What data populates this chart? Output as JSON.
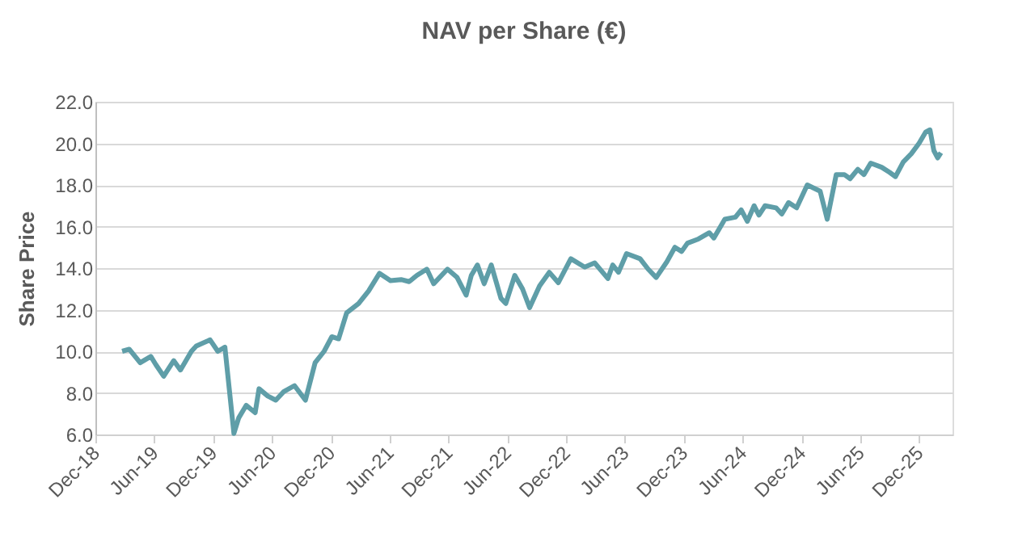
{
  "chart_data": {
    "type": "line",
    "title": "NAV per Share (€)",
    "ylabel": "Share Price",
    "x": [
      "2019-02-22",
      "2019-03-16",
      "2019-04-19",
      "2019-05-22",
      "2019-06-07",
      "2019-07-01",
      "2019-08-01",
      "2019-08-22",
      "2019-09-25",
      "2019-10-10",
      "2019-11-22",
      "2019-12-16",
      "2020-01-07",
      "2020-02-04",
      "2020-02-19",
      "2020-03-13",
      "2020-04-10",
      "2020-04-22",
      "2020-05-19",
      "2020-06-13",
      "2020-07-07",
      "2020-08-10",
      "2020-09-13",
      "2020-10-13",
      "2020-11-10",
      "2020-12-04",
      "2020-12-25",
      "2021-01-19",
      "2021-02-25",
      "2021-03-28",
      "2021-05-01",
      "2021-06-04",
      "2021-07-07",
      "2021-08-01",
      "2021-08-25",
      "2021-09-25",
      "2021-10-16",
      "2021-11-28",
      "2021-12-28",
      "2022-01-25",
      "2022-02-10",
      "2022-03-01",
      "2022-03-22",
      "2022-04-13",
      "2022-05-13",
      "2022-05-28",
      "2022-06-25",
      "2022-07-19",
      "2022-08-10",
      "2022-09-10",
      "2022-10-10",
      "2022-11-07",
      "2022-12-16",
      "2023-01-28",
      "2023-02-28",
      "2023-04-10",
      "2023-04-25",
      "2023-05-13",
      "2023-06-07",
      "2023-07-19",
      "2023-08-13",
      "2023-09-07",
      "2023-10-10",
      "2023-11-04",
      "2023-11-25",
      "2023-12-13",
      "2024-01-16",
      "2024-02-19",
      "2024-03-04",
      "2024-04-07",
      "2024-05-10",
      "2024-05-28",
      "2024-06-16",
      "2024-07-07",
      "2024-07-22",
      "2024-08-10",
      "2024-09-13",
      "2024-10-01",
      "2024-10-22",
      "2024-11-16",
      "2024-12-19",
      "2025-01-28",
      "2025-02-19",
      "2025-03-19",
      "2025-04-13",
      "2025-05-01",
      "2025-05-25",
      "2025-06-13",
      "2025-07-04",
      "2025-08-07",
      "2025-09-01",
      "2025-09-19",
      "2025-10-13",
      "2025-11-07",
      "2025-12-01",
      "2025-12-22",
      "2026-01-04",
      "2026-01-16",
      "2026-01-28",
      "2026-02-07"
    ],
    "series": [
      {
        "color": "#5f9ea8",
        "values": [
          10.0,
          10.1,
          9.45,
          9.75,
          9.35,
          8.8,
          9.55,
          9.1,
          10.0,
          10.25,
          10.55,
          10.0,
          10.2,
          6.05,
          6.8,
          7.4,
          7.05,
          8.2,
          7.85,
          7.65,
          8.05,
          8.35,
          7.65,
          9.45,
          10.0,
          10.7,
          10.6,
          11.85,
          12.3,
          12.9,
          13.75,
          13.4,
          13.45,
          13.35,
          13.65,
          13.95,
          13.25,
          13.95,
          13.55,
          12.7,
          13.65,
          14.15,
          13.25,
          14.15,
          12.55,
          12.3,
          13.65,
          13.0,
          12.1,
          13.15,
          13.8,
          13.3,
          14.45,
          14.05,
          14.25,
          13.5,
          14.15,
          13.8,
          14.7,
          14.45,
          13.95,
          13.55,
          14.3,
          15.0,
          14.8,
          15.2,
          15.4,
          15.7,
          15.45,
          16.35,
          16.45,
          16.8,
          16.25,
          17.0,
          16.55,
          17.0,
          16.9,
          16.6,
          17.15,
          16.9,
          18.0,
          17.7,
          16.35,
          18.5,
          18.5,
          18.3,
          18.75,
          18.5,
          19.05,
          18.85,
          18.6,
          18.4,
          19.1,
          19.5,
          20.0,
          20.55,
          20.65,
          19.65,
          19.3,
          19.55
        ]
      }
    ],
    "xlim": [
      "2018-12-01",
      "2026-03-15"
    ],
    "xticks": [
      {
        "value": "2018-12-01",
        "label": "Dec-18"
      },
      {
        "value": "2019-06-01",
        "label": "Jun-19"
      },
      {
        "value": "2019-12-01",
        "label": "Dec-19"
      },
      {
        "value": "2020-06-01",
        "label": "Jun-20"
      },
      {
        "value": "2020-12-01",
        "label": "Dec-20"
      },
      {
        "value": "2021-06-01",
        "label": "Jun-21"
      },
      {
        "value": "2021-12-01",
        "label": "Dec-21"
      },
      {
        "value": "2022-06-01",
        "label": "Jun-22"
      },
      {
        "value": "2022-12-01",
        "label": "Dec-22"
      },
      {
        "value": "2023-06-01",
        "label": "Jun-23"
      },
      {
        "value": "2023-12-01",
        "label": "Dec-23"
      },
      {
        "value": "2024-06-01",
        "label": "Jun-24"
      },
      {
        "value": "2024-12-01",
        "label": "Dec-24"
      },
      {
        "value": "2025-06-01",
        "label": "Jun-25"
      },
      {
        "value": "2025-12-01",
        "label": "Dec-25"
      }
    ],
    "ylim": [
      6,
      22
    ],
    "yticks": [
      {
        "value": 6,
        "label": "6.0"
      },
      {
        "value": 8,
        "label": "8.0"
      },
      {
        "value": 10,
        "label": "10.0"
      },
      {
        "value": 12,
        "label": "12.0"
      },
      {
        "value": 14,
        "label": "14.0"
      },
      {
        "value": 16,
        "label": "16.0"
      },
      {
        "value": 18,
        "label": "18.0"
      },
      {
        "value": 20,
        "label": "20.0"
      },
      {
        "value": 22,
        "label": "22.0"
      }
    ],
    "grid": "y",
    "marker": "none",
    "line_style": "solid"
  }
}
